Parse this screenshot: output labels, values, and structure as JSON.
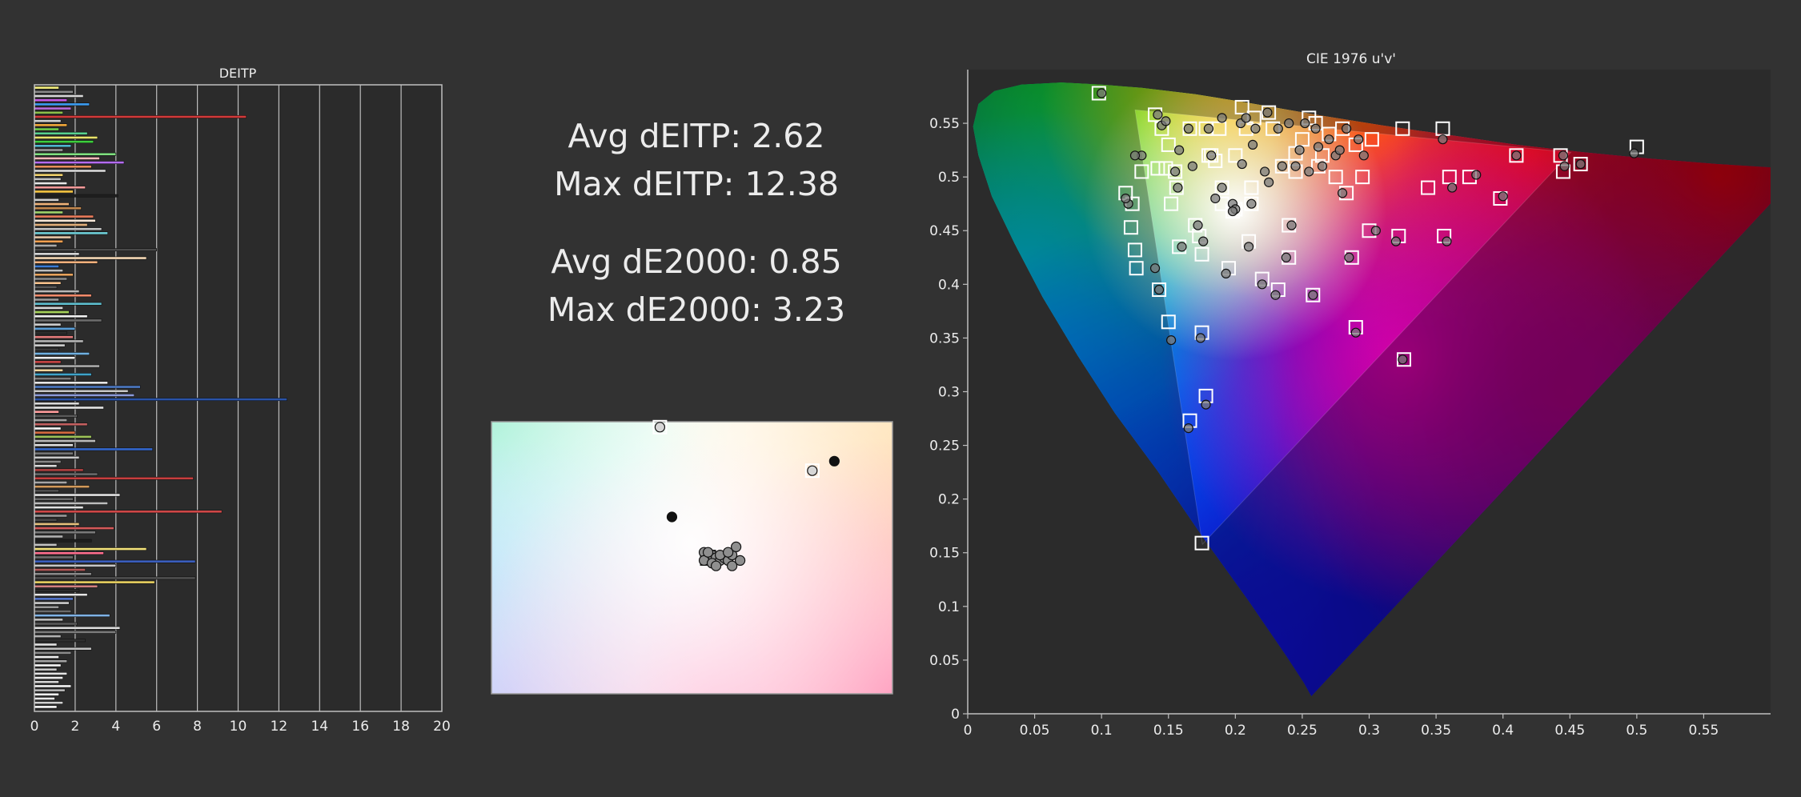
{
  "stats": {
    "avg_deitp": "Avg dEITP: 2.62",
    "max_deitp": "Max dEITP: 12.38",
    "avg_de2000": "Avg dE2000: 0.85",
    "max_de2000": "Max dE2000: 3.23"
  },
  "colors": {
    "background": "#323232",
    "plot_background": "#2b2b2b",
    "axis": "#bfbfbf",
    "text": "#ececec",
    "marker_target": "#ffffff",
    "marker_measured": "#111111"
  },
  "chart_data": [
    {
      "type": "bar",
      "orientation": "horizontal",
      "title": "DEITP",
      "xlim": [
        0,
        20
      ],
      "xticks": [
        0,
        2,
        4,
        6,
        8,
        10,
        12,
        14,
        16,
        18,
        20
      ],
      "grid": true,
      "legend": "none",
      "values": [
        1.2,
        1.9,
        2.4,
        1.6,
        2.7,
        1.8,
        1.4,
        10.4,
        1.3,
        1.6,
        1.2,
        2.6,
        3.1,
        2.9,
        1.8,
        1.4,
        4.0,
        3.2,
        4.4,
        2.8,
        3.5,
        1.4,
        1.3,
        1.6,
        2.5,
        1.9,
        4.1,
        1.2,
        1.7,
        2.3,
        1.4,
        2.9,
        3.0,
        2.6,
        3.3,
        3.6,
        1.8,
        1.4,
        1.1,
        6.0,
        2.2,
        5.5,
        3.1,
        1.2,
        1.4,
        1.9,
        1.6,
        1.3,
        1.1,
        2.2,
        2.8,
        1.2,
        3.3,
        1.4,
        1.7,
        2.6,
        3.3,
        1.3,
        2.0,
        1.6,
        1.9,
        2.4,
        1.5,
        1.2,
        2.7,
        2.0,
        1.3,
        3.2,
        1.4,
        2.8,
        1.8,
        3.6,
        5.2,
        4.6,
        4.9,
        12.4,
        2.2,
        3.4,
        1.2,
        2.1,
        1.6,
        2.6,
        1.3,
        2.0,
        2.8,
        3.0,
        1.9,
        5.8,
        1.9,
        2.2,
        1.3,
        1.1,
        2.4,
        3.1,
        7.8,
        1.6,
        2.7,
        1.2,
        4.2,
        1.9,
        3.6,
        2.4,
        9.2,
        1.6,
        1.1,
        2.2,
        3.9,
        3.0,
        1.4,
        2.8,
        1.1,
        5.5,
        3.4,
        1.9,
        7.9,
        4.0,
        2.5,
        2.8,
        7.9,
        5.9,
        3.1,
        2.2,
        2.6,
        1.9,
        1.7,
        1.2,
        1.8,
        3.7,
        1.4,
        2.1,
        4.2,
        4.0,
        1.3,
        2.5,
        1.1,
        2.8,
        1.8,
        1.2,
        1.6,
        1.3,
        1.1,
        1.6,
        1.4,
        1.2,
        1.8,
        1.5,
        1.2,
        1.0,
        1.4,
        1.1
      ],
      "series_colors": [
        "#f3ef7d",
        "#8a8a8a",
        "#d9d9d9",
        "#c85be7",
        "#3b9cf2",
        "#b96ad9",
        "#8cc04b",
        "#d23a3a",
        "#d2d2d2",
        "#f2a93b",
        "#6fcf4b",
        "#58d18f",
        "#e8e36b",
        "#3dcf3d",
        "#4fb8cf",
        "#9a9a9a",
        "#7fe07f",
        "#f4b8b8",
        "#b46cf2",
        "#e88f5b",
        "#d9d9d9",
        "#f3d36b",
        "#c2c2c2",
        "#e7e7e7",
        "#f29a9a",
        "#f5c542",
        "#1f1f1f",
        "#cfcfcf",
        "#f0b37a",
        "#c4894f",
        "#9ed36b",
        "#e87b5b",
        "#f7e7d7",
        "#e3b07a",
        "#c7c7c7",
        "#6fcfd8",
        "#e6c6a6",
        "#f29f4e",
        "#a9a9a9",
        "#4a4a4a",
        "#d9d9d9",
        "#f5d8b5",
        "#f3b07c",
        "#3a7bd5",
        "#bdbdbd",
        "#e8a25b",
        "#8a8a8a",
        "#f7c28c",
        "#585858",
        "#b8b8b8",
        "#f38b6b",
        "#9a9a9a",
        "#5fbfcf",
        "#d9d9d9",
        "#a7d35a",
        "#f2f2f2",
        "#6c6c6c",
        "#cfcfcf",
        "#5a9fd8",
        "#2c2c2c",
        "#e57b7b",
        "#b5b5b5",
        "#d0d0d0",
        "#3a3a3a",
        "#6fb0e0",
        "#ededed",
        "#c94545",
        "#aaaaaa",
        "#f0d49b",
        "#3fa3c9",
        "#7b7b7b",
        "#e9e9e9",
        "#4c78c2",
        "#c7c7c7",
        "#8b9ad8",
        "#2a53a8",
        "#d9d9d9",
        "#e5e5e5",
        "#ff9d9d",
        "#5a5a5a",
        "#a0a0a0",
        "#c46060",
        "#f7f7f7",
        "#d56a3f",
        "#9ec45a",
        "#bbbbbb",
        "#e2e2e2",
        "#3366cc",
        "#777777",
        "#c9c9c9",
        "#888888",
        "#dcdcdc",
        "#b04040",
        "#6a6a6a",
        "#c73e3e",
        "#a6a6a6",
        "#d39a5a",
        "#505050",
        "#e3e3e3",
        "#6b6b6b",
        "#bdbdbd",
        "#e0e0e0",
        "#d14848",
        "#999999",
        "#4a4a4a",
        "#e7c17d",
        "#d55a5a",
        "#7a7a7a",
        "#b0b0b0",
        "#1e1e1e",
        "#c4c4c4",
        "#f3e27a",
        "#ff6f8f",
        "#6d6d6d",
        "#3b5fbf",
        "#c8c8c8",
        "#b35959",
        "#8a8a8a",
        "#4f4f4f",
        "#e8d060",
        "#d38080",
        "#2a2a2a",
        "#e6e6e6",
        "#5577cc",
        "#cccccc",
        "#9a9a9a",
        "#6b6b6b",
        "#7fb2e5",
        "#bdbdbd",
        "#595959",
        "#dedede",
        "#7d7d7d",
        "#b3b3b3",
        "#2f2f2f",
        "#e2e2e2",
        "#c1c1c1",
        "#8c8c8c",
        "#f1f1f1",
        "#a3a3a3",
        "#f7f7f7",
        "#c9c9c9",
        "#e4e4e4",
        "#ededed",
        "#d6d6d6",
        "#f3f3f3",
        "#b9b9b9",
        "#ffffff",
        "#e9e9e9",
        "#cfcfcf",
        "#fbfbfb"
      ]
    },
    {
      "type": "scatter",
      "title": "",
      "legend": "none",
      "description_series": [
        "target",
        "measured"
      ],
      "xlim": [
        0,
        1
      ],
      "ylim": [
        0,
        1
      ],
      "target": [
        [
          0.42,
          0.98
        ],
        [
          0.8,
          0.82
        ]
      ],
      "measured": [
        [
          0.42,
          0.98
        ],
        [
          0.855,
          0.855
        ],
        [
          0.45,
          0.65
        ],
        [
          0.53,
          0.52
        ],
        [
          0.54,
          0.5
        ],
        [
          0.55,
          0.51
        ],
        [
          0.56,
          0.5
        ],
        [
          0.57,
          0.49
        ],
        [
          0.58,
          0.5
        ],
        [
          0.59,
          0.49
        ],
        [
          0.6,
          0.51
        ],
        [
          0.61,
          0.54
        ],
        [
          0.53,
          0.49
        ],
        [
          0.55,
          0.48
        ],
        [
          0.57,
          0.51
        ],
        [
          0.59,
          0.52
        ],
        [
          0.6,
          0.47
        ],
        [
          0.56,
          0.47
        ],
        [
          0.54,
          0.52
        ],
        [
          0.62,
          0.49
        ],
        [
          0.8,
          0.82
        ]
      ],
      "target_cluster_box": [
        0.54,
        0.5
      ]
    },
    {
      "type": "scatter",
      "title": "CIE 1976 u'v'",
      "xlabel": "",
      "ylabel": "",
      "xlim": [
        0,
        0.6
      ],
      "ylim": [
        0,
        0.6
      ],
      "xticks": [
        0,
        0.05,
        0.1,
        0.15,
        0.2,
        0.25,
        0.3,
        0.35,
        0.4,
        0.45,
        0.5,
        0.55
      ],
      "xtick_labels": [
        "0",
        "0.05",
        "0.1",
        "0.15",
        "0.2",
        "0.25",
        "0.3",
        "0.35",
        "0.4",
        "0.45",
        "0.5",
        "0.55"
      ],
      "yticks": [
        0,
        0.05,
        0.1,
        0.15,
        0.2,
        0.25,
        0.3,
        0.35,
        0.4,
        0.45,
        0.5,
        0.55
      ],
      "ytick_labels": [
        "0",
        "0.05",
        "0.1",
        "0.15",
        "0.2",
        "0.25",
        "0.3",
        "0.35",
        "0.4",
        "0.45",
        "0.5",
        "0.55"
      ],
      "grid": false,
      "legend": "none",
      "gamut_primaries": [
        [
          0.4507,
          0.5229
        ],
        [
          0.125,
          0.5625
        ],
        [
          0.1754,
          0.1579
        ]
      ],
      "target": [
        [
          0.098,
          0.578
        ],
        [
          0.118,
          0.485
        ],
        [
          0.122,
          0.453
        ],
        [
          0.125,
          0.432
        ],
        [
          0.126,
          0.415
        ],
        [
          0.14,
          0.558
        ],
        [
          0.145,
          0.545
        ],
        [
          0.148,
          0.508
        ],
        [
          0.15,
          0.53
        ],
        [
          0.152,
          0.475
        ],
        [
          0.155,
          0.505
        ],
        [
          0.156,
          0.49
        ],
        [
          0.158,
          0.435
        ],
        [
          0.17,
          0.455
        ],
        [
          0.173,
          0.445
        ],
        [
          0.175,
          0.428
        ],
        [
          0.178,
          0.545
        ],
        [
          0.18,
          0.52
        ],
        [
          0.185,
          0.515
        ],
        [
          0.188,
          0.545
        ],
        [
          0.19,
          0.49
        ],
        [
          0.195,
          0.415
        ],
        [
          0.2,
          0.47
        ],
        [
          0.205,
          0.565
        ],
        [
          0.208,
          0.545
        ],
        [
          0.21,
          0.44
        ],
        [
          0.212,
          0.475
        ],
        [
          0.214,
          0.555
        ],
        [
          0.22,
          0.405
        ],
        [
          0.225,
          0.56
        ],
        [
          0.228,
          0.545
        ],
        [
          0.232,
          0.395
        ],
        [
          0.235,
          0.51
        ],
        [
          0.24,
          0.455
        ],
        [
          0.24,
          0.425
        ],
        [
          0.245,
          0.505
        ],
        [
          0.25,
          0.535
        ],
        [
          0.255,
          0.555
        ],
        [
          0.258,
          0.39
        ],
        [
          0.26,
          0.55
        ],
        [
          0.265,
          0.52
        ],
        [
          0.27,
          0.54
        ],
        [
          0.275,
          0.5
        ],
        [
          0.28,
          0.545
        ],
        [
          0.283,
          0.485
        ],
        [
          0.287,
          0.425
        ],
        [
          0.29,
          0.36
        ],
        [
          0.29,
          0.53
        ],
        [
          0.295,
          0.5
        ],
        [
          0.3,
          0.45
        ],
        [
          0.302,
          0.535
        ],
        [
          0.322,
          0.445
        ],
        [
          0.325,
          0.545
        ],
        [
          0.326,
          0.33
        ],
        [
          0.344,
          0.49
        ],
        [
          0.355,
          0.545
        ],
        [
          0.356,
          0.445
        ],
        [
          0.36,
          0.5
        ],
        [
          0.375,
          0.5
        ],
        [
          0.398,
          0.48
        ],
        [
          0.41,
          0.52
        ],
        [
          0.443,
          0.52
        ],
        [
          0.445,
          0.505
        ],
        [
          0.458,
          0.512
        ],
        [
          0.5,
          0.528
        ],
        [
          0.15,
          0.365
        ],
        [
          0.175,
          0.355
        ],
        [
          0.178,
          0.296
        ],
        [
          0.166,
          0.273
        ],
        [
          0.143,
          0.395
        ],
        [
          0.13,
          0.505
        ],
        [
          0.175,
          0.159
        ],
        [
          0.123,
          0.475
        ],
        [
          0.142,
          0.508
        ],
        [
          0.166,
          0.545
        ],
        [
          0.182,
          0.52
        ],
        [
          0.2,
          0.52
        ],
        [
          0.212,
          0.49
        ],
        [
          0.245,
          0.522
        ],
        [
          0.262,
          0.51
        ],
        [
          0.19,
          0.475
        ],
        [
          0.198,
          0.468
        ]
      ],
      "measured": [
        [
          0.1,
          0.578
        ],
        [
          0.12,
          0.475
        ],
        [
          0.13,
          0.52
        ],
        [
          0.14,
          0.415
        ],
        [
          0.142,
          0.558
        ],
        [
          0.145,
          0.548
        ],
        [
          0.148,
          0.552
        ],
        [
          0.155,
          0.505
        ],
        [
          0.158,
          0.525
        ],
        [
          0.16,
          0.435
        ],
        [
          0.165,
          0.545
        ],
        [
          0.172,
          0.455
        ],
        [
          0.176,
          0.44
        ],
        [
          0.18,
          0.545
        ],
        [
          0.182,
          0.52
        ],
        [
          0.185,
          0.48
        ],
        [
          0.19,
          0.49
        ],
        [
          0.193,
          0.41
        ],
        [
          0.198,
          0.475
        ],
        [
          0.2,
          0.47
        ],
        [
          0.204,
          0.55
        ],
        [
          0.208,
          0.555
        ],
        [
          0.21,
          0.435
        ],
        [
          0.212,
          0.475
        ],
        [
          0.215,
          0.545
        ],
        [
          0.22,
          0.4
        ],
        [
          0.222,
          0.505
        ],
        [
          0.224,
          0.56
        ],
        [
          0.23,
          0.39
        ],
        [
          0.232,
          0.545
        ],
        [
          0.235,
          0.51
        ],
        [
          0.238,
          0.425
        ],
        [
          0.24,
          0.55
        ],
        [
          0.242,
          0.455
        ],
        [
          0.245,
          0.51
        ],
        [
          0.248,
          0.525
        ],
        [
          0.252,
          0.55
        ],
        [
          0.255,
          0.505
        ],
        [
          0.258,
          0.39
        ],
        [
          0.26,
          0.545
        ],
        [
          0.262,
          0.528
        ],
        [
          0.265,
          0.51
        ],
        [
          0.27,
          0.535
        ],
        [
          0.275,
          0.52
        ],
        [
          0.278,
          0.525
        ],
        [
          0.28,
          0.485
        ],
        [
          0.283,
          0.545
        ],
        [
          0.285,
          0.425
        ],
        [
          0.29,
          0.355
        ],
        [
          0.292,
          0.535
        ],
        [
          0.296,
          0.52
        ],
        [
          0.305,
          0.45
        ],
        [
          0.32,
          0.44
        ],
        [
          0.325,
          0.33
        ],
        [
          0.355,
          0.535
        ],
        [
          0.358,
          0.44
        ],
        [
          0.362,
          0.49
        ],
        [
          0.38,
          0.502
        ],
        [
          0.4,
          0.482
        ],
        [
          0.41,
          0.52
        ],
        [
          0.445,
          0.52
        ],
        [
          0.446,
          0.51
        ],
        [
          0.458,
          0.512
        ],
        [
          0.498,
          0.522
        ],
        [
          0.152,
          0.348
        ],
        [
          0.174,
          0.35
        ],
        [
          0.178,
          0.288
        ],
        [
          0.165,
          0.266
        ],
        [
          0.143,
          0.395
        ],
        [
          0.125,
          0.52
        ],
        [
          0.118,
          0.48
        ],
        [
          0.157,
          0.49
        ],
        [
          0.19,
          0.555
        ],
        [
          0.205,
          0.512
        ],
        [
          0.213,
          0.53
        ],
        [
          0.225,
          0.495
        ],
        [
          0.168,
          0.51
        ],
        [
          0.198,
          0.468
        ]
      ]
    }
  ]
}
